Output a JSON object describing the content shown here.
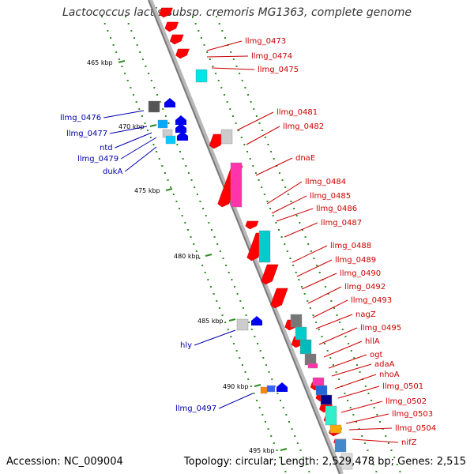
{
  "title": "Lactococcus lactis subsp. cremoris MG1363, complete genome",
  "footer": {
    "accession": "Accession: NC_009004",
    "topology": "Topology: circular; Length: 2,529,478 bp; Genes: 2,515"
  },
  "ticks": [
    {
      "label": "465 kbp"
    },
    {
      "label": "470 kbp"
    },
    {
      "label": "475 kbp"
    },
    {
      "label": "480 kbp"
    },
    {
      "label": "485 kbp"
    },
    {
      "label": "490 kbp"
    },
    {
      "label": "495 kbp"
    }
  ],
  "left_labels": [
    "llmg_0476",
    "llmg_0477",
    "ntd",
    "llmg_0479",
    "dukA",
    "hly",
    "llmg_0497"
  ],
  "right_labels": [
    "llmg_0473",
    "llmg_0474",
    "llmg_0475",
    "llmg_0481",
    "llmg_0482",
    "dnaE",
    "llmg_0484",
    "llmg_0485",
    "llmg_0486",
    "llmg_0487",
    "llmg_0488",
    "llmg_0489",
    "llmg_0490",
    "llmg_0492",
    "llmg_0493",
    "nagZ",
    "llmg_0495",
    "hllA",
    "ogt",
    "adaA",
    "nhoA",
    "llmg_0501",
    "llmg_0502",
    "llmg_0503",
    "llmg_0504",
    "nifZ"
  ],
  "colors": {
    "right_label": "#cc0000",
    "left_label": "#0000aa",
    "strand_arrow": "#ff0000",
    "dot": "#2e8b22"
  }
}
